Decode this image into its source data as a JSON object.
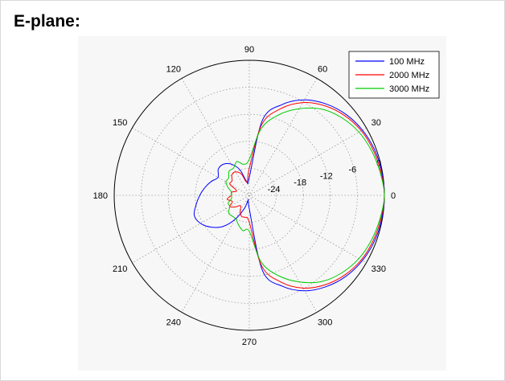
{
  "page": {
    "heading": "E-plane:"
  },
  "chart_data": {
    "type": "polar-line",
    "title": "",
    "angle_ticks": [
      "0",
      "30",
      "60",
      "90",
      "120",
      "150",
      "180",
      "210",
      "240",
      "270",
      "300",
      "330"
    ],
    "radial_ticks": [
      "-24",
      "-18",
      "-12",
      "-6",
      "0"
    ],
    "radial_range_db": [
      -30,
      0
    ],
    "angular_step_deg": 30,
    "grid": true,
    "legend_position": "top-right",
    "series": [
      {
        "name": "100 MHz",
        "color": "#0000ff",
        "angles_deg": [
          0,
          10,
          20,
          30,
          40,
          50,
          60,
          70,
          80,
          90,
          100,
          110,
          120,
          130,
          140,
          150,
          160,
          170,
          180,
          190,
          200,
          210,
          220,
          230,
          240,
          250,
          260,
          270,
          280,
          290,
          300,
          310,
          320,
          330,
          340,
          350
        ],
        "gain_db": [
          0,
          -0.1,
          -0.4,
          -1,
          -2,
          -3.5,
          -5.5,
          -8.5,
          -13,
          -26,
          -27,
          -24,
          -22,
          -21,
          -21,
          -22,
          -21,
          -20,
          -19,
          -18,
          -17,
          -17.5,
          -19,
          -21,
          -24,
          -27,
          -29,
          -27,
          -13,
          -8.5,
          -5.5,
          -3.5,
          -2,
          -1,
          -0.4,
          -0.1
        ]
      },
      {
        "name": "2000 MHz",
        "color": "#ff0000",
        "angles_deg": [
          0,
          10,
          20,
          30,
          40,
          50,
          60,
          70,
          80,
          90,
          100,
          110,
          120,
          130,
          140,
          150,
          160,
          170,
          180,
          190,
          200,
          210,
          220,
          230,
          240,
          250,
          260,
          270,
          280,
          290,
          300,
          310,
          320,
          330,
          340,
          350
        ],
        "gain_db": [
          0,
          -0.3,
          -0.7,
          -1.3,
          -2.4,
          -4,
          -6.2,
          -9.5,
          -14,
          -24,
          -27,
          -25,
          -24,
          -24,
          -25,
          -25,
          -27,
          -26,
          -26,
          -25,
          -26,
          -25,
          -26,
          -27,
          -26,
          -25,
          -25,
          -24,
          -14,
          -9.5,
          -6.2,
          -4,
          -2.4,
          -1.3,
          -0.7,
          -0.3
        ]
      },
      {
        "name": "3000 MHz",
        "color": "#00cc00",
        "angles_deg": [
          0,
          10,
          20,
          30,
          40,
          50,
          60,
          70,
          80,
          90,
          100,
          110,
          120,
          130,
          140,
          150,
          160,
          170,
          180,
          190,
          200,
          210,
          220,
          230,
          240,
          250,
          260,
          270,
          280,
          290,
          300,
          310,
          320,
          330,
          340,
          350
        ],
        "gain_db": [
          0,
          -0.5,
          -1.1,
          -1.9,
          -3.2,
          -5,
          -7.8,
          -11,
          -15,
          -22,
          -23,
          -22,
          -23,
          -23,
          -24,
          -24,
          -25,
          -26,
          -26,
          -26,
          -25,
          -25,
          -24,
          -24,
          -24,
          -23,
          -22,
          -22,
          -15,
          -11,
          -7.8,
          -5,
          -3.2,
          -1.9,
          -1.1,
          -0.5
        ]
      }
    ]
  }
}
